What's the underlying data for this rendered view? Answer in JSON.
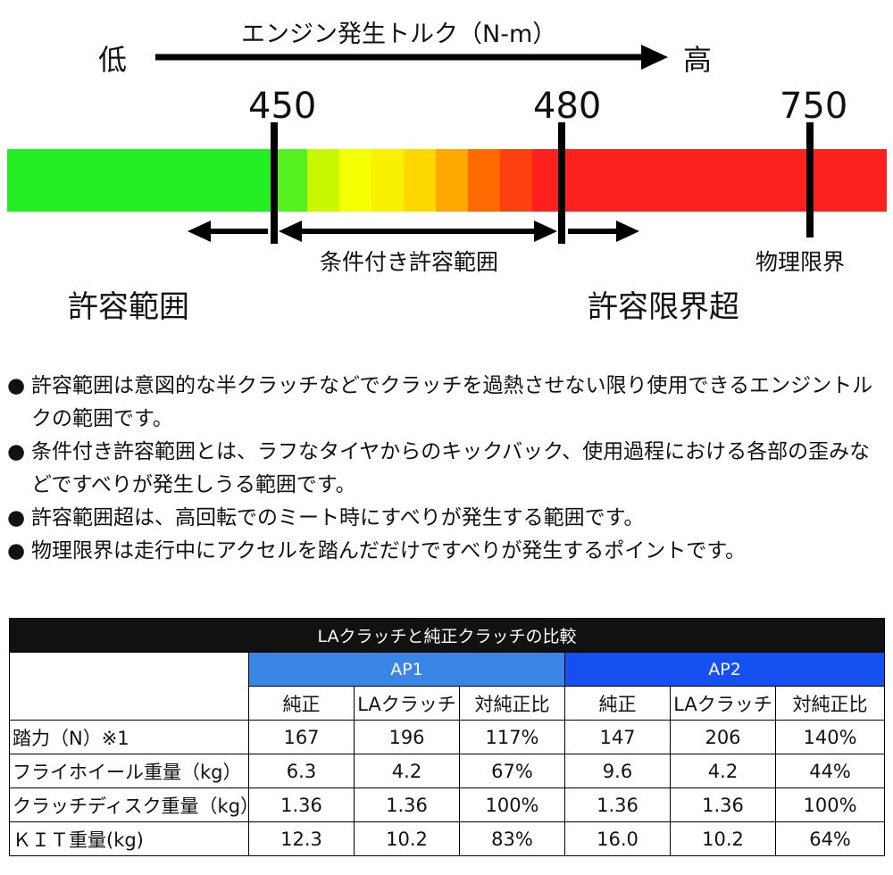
{
  "diagram": {
    "header": "エンジン発生トルク（N-m）",
    "low": "低",
    "high": "高",
    "markers": [
      "450",
      "480",
      "750"
    ],
    "range_labels": {
      "conditional": "条件付き許容範囲",
      "physical_limit": "物理限界",
      "allowable": "許容範囲",
      "beyond_limit": "許容限界超"
    },
    "colors": {
      "green": "#22ee22",
      "yellow": "#f4ff00",
      "orange": "#ff6a00",
      "red": "#fe1f1f",
      "marker": "#000000"
    }
  },
  "notes": [
    "許容範囲は意図的な半クラッチなどでクラッチを過熱させない限り使用できるエンジントルクの範囲です。",
    "条件付き許容範囲とは、ラフなタイヤからのキックバック、使用過程における各部の歪みなどですべりが発生しうる範囲です。",
    "許容範囲超は、高回転でのミート時にすべりが発生する範囲です。",
    "物理限界は走行中にアクセルを踏んだだけですべりが発生するポイントです。"
  ],
  "table": {
    "title": "LAクラッチと純正クラッチの比較",
    "groups": [
      "AP1",
      "AP2"
    ],
    "subheaders": [
      "純正",
      "LAクラッチ",
      "対純正比",
      "純正",
      "LAクラッチ",
      "対純正比"
    ],
    "rows": [
      {
        "label": "踏力（N）※1",
        "cells": [
          "167",
          "196",
          "117%",
          "147",
          "206",
          "140%"
        ]
      },
      {
        "label": "フライホイール重量（kg）",
        "cells": [
          "6.3",
          "4.2",
          "67%",
          "9.6",
          "4.2",
          "44%"
        ]
      },
      {
        "label": "クラッチディスク重量（kg）",
        "cells": [
          "1.36",
          "1.36",
          "100%",
          "1.36",
          "1.36",
          "100%"
        ]
      },
      {
        "label": "ＫＩＴ重量(kg)",
        "cells": [
          "12.3",
          "10.2",
          "83%",
          "16.0",
          "10.2",
          "64%"
        ]
      }
    ]
  }
}
